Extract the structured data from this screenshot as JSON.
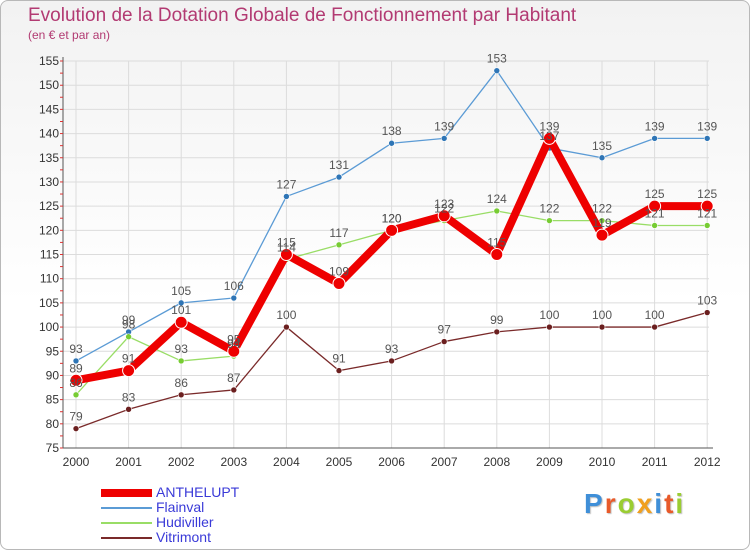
{
  "chart_data": {
    "type": "line",
    "title": "Evolution de la Dotation Globale de Fonctionnement par Habitant",
    "subtitle": "(en € et par an)",
    "xlabel": "",
    "ylabel": "",
    "categories": [
      "2000",
      "2001",
      "2002",
      "2003",
      "2004",
      "2005",
      "2006",
      "2007",
      "2008",
      "2009",
      "2010",
      "2011",
      "2012"
    ],
    "ylim": [
      75,
      155
    ],
    "yticks": [
      75,
      80,
      85,
      90,
      95,
      100,
      105,
      110,
      115,
      120,
      125,
      130,
      135,
      140,
      145,
      150,
      155
    ],
    "grid": true,
    "legend_position": "bottom-left",
    "series": [
      {
        "name": "Flainval",
        "color": "#5b9bd5",
        "marker": "#2e75b6",
        "values": [
          93,
          99,
          105,
          106,
          127,
          131,
          138,
          139,
          153,
          137,
          135,
          139,
          139
        ],
        "labels": [
          "93",
          "99",
          "105",
          "106",
          "127",
          "131",
          "138",
          "139",
          "153",
          "137",
          "135",
          "139",
          "139"
        ]
      },
      {
        "name": "Hudiviller",
        "color": "#99dd66",
        "marker": "#77cc33",
        "values": [
          86,
          98,
          93,
          94,
          114,
          117,
          120,
          122,
          124,
          122,
          122,
          121,
          121
        ],
        "labels": [
          "86",
          "98",
          "93",
          "94",
          "114",
          "117",
          "120",
          "122",
          "124",
          "122",
          "122",
          "121",
          "121"
        ]
      },
      {
        "name": "Vitrimont",
        "color": "#7a2a2a",
        "marker": "#6b1f1f",
        "values": [
          79,
          83,
          86,
          87,
          100,
          91,
          93,
          97,
          99,
          100,
          100,
          100,
          103
        ],
        "labels": [
          "79",
          "83",
          "86",
          "87",
          "100",
          "91",
          "93",
          "97",
          "99",
          "100",
          "100",
          "100",
          "103"
        ]
      },
      {
        "name": "ANTHELUPT",
        "color": "#ee0000",
        "marker": "#ee0000",
        "values": [
          89,
          91,
          101,
          95,
          115,
          109,
          120,
          123,
          115,
          139,
          119,
          125,
          125
        ],
        "labels": [
          "89",
          "91",
          "101",
          "95",
          "115",
          "109",
          "120",
          "123",
          "115",
          "139",
          "119",
          "125",
          "125"
        ]
      }
    ]
  },
  "legend": {
    "items": [
      {
        "name": "ANTHELUPT",
        "color": "#ee0000"
      },
      {
        "name": "Flainval",
        "color": "#5b9bd5"
      },
      {
        "name": "Hudiviller",
        "color": "#99dd66"
      },
      {
        "name": "Vitrimont",
        "color": "#7a2a2a"
      }
    ]
  },
  "logo": {
    "text": "Proxiti",
    "letters": [
      {
        "ch": "P",
        "color": "#3f8fd8"
      },
      {
        "ch": "r",
        "color": "#e85a2a"
      },
      {
        "ch": "o",
        "color": "#9acd32"
      },
      {
        "ch": "x",
        "color": "#f0a020"
      },
      {
        "ch": "i",
        "color": "#3f8fd8"
      },
      {
        "ch": "t",
        "color": "#e85a2a"
      },
      {
        "ch": "i",
        "color": "#9acd32"
      }
    ]
  }
}
